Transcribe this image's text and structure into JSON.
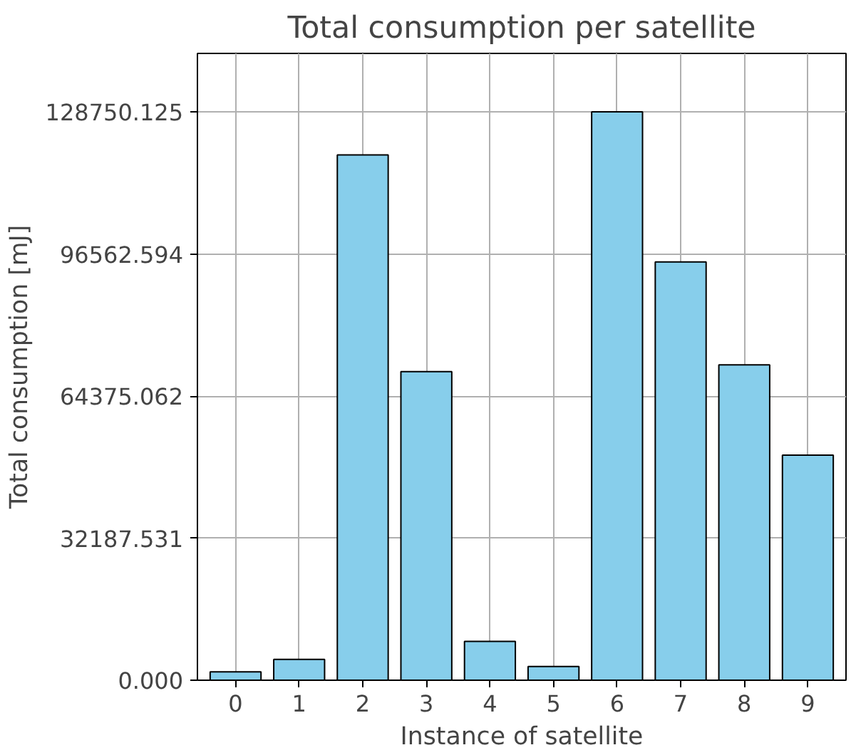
{
  "chart_data": {
    "type": "bar",
    "title": "Total consumption per satellite",
    "xlabel": "Instance of satellite",
    "ylabel": "Total consumption [mJ]",
    "categories": [
      "0",
      "1",
      "2",
      "3",
      "4",
      "5",
      "6",
      "7",
      "8",
      "9"
    ],
    "values": [
      1900,
      4700,
      119000,
      69900,
      8800,
      3100,
      128750.125,
      94750,
      71450,
      51000
    ],
    "color": "#87ceeb",
    "ylim": [
      0,
      142000
    ],
    "yticks": [
      {
        "value": 0,
        "label": "0.000"
      },
      {
        "value": 32187.531,
        "label": "32187.531"
      },
      {
        "value": 64375.062,
        "label": "64375.062"
      },
      {
        "value": 96562.594,
        "label": "96562.594"
      },
      {
        "value": 128750.125,
        "label": "128750.125"
      }
    ],
    "grid": true
  }
}
